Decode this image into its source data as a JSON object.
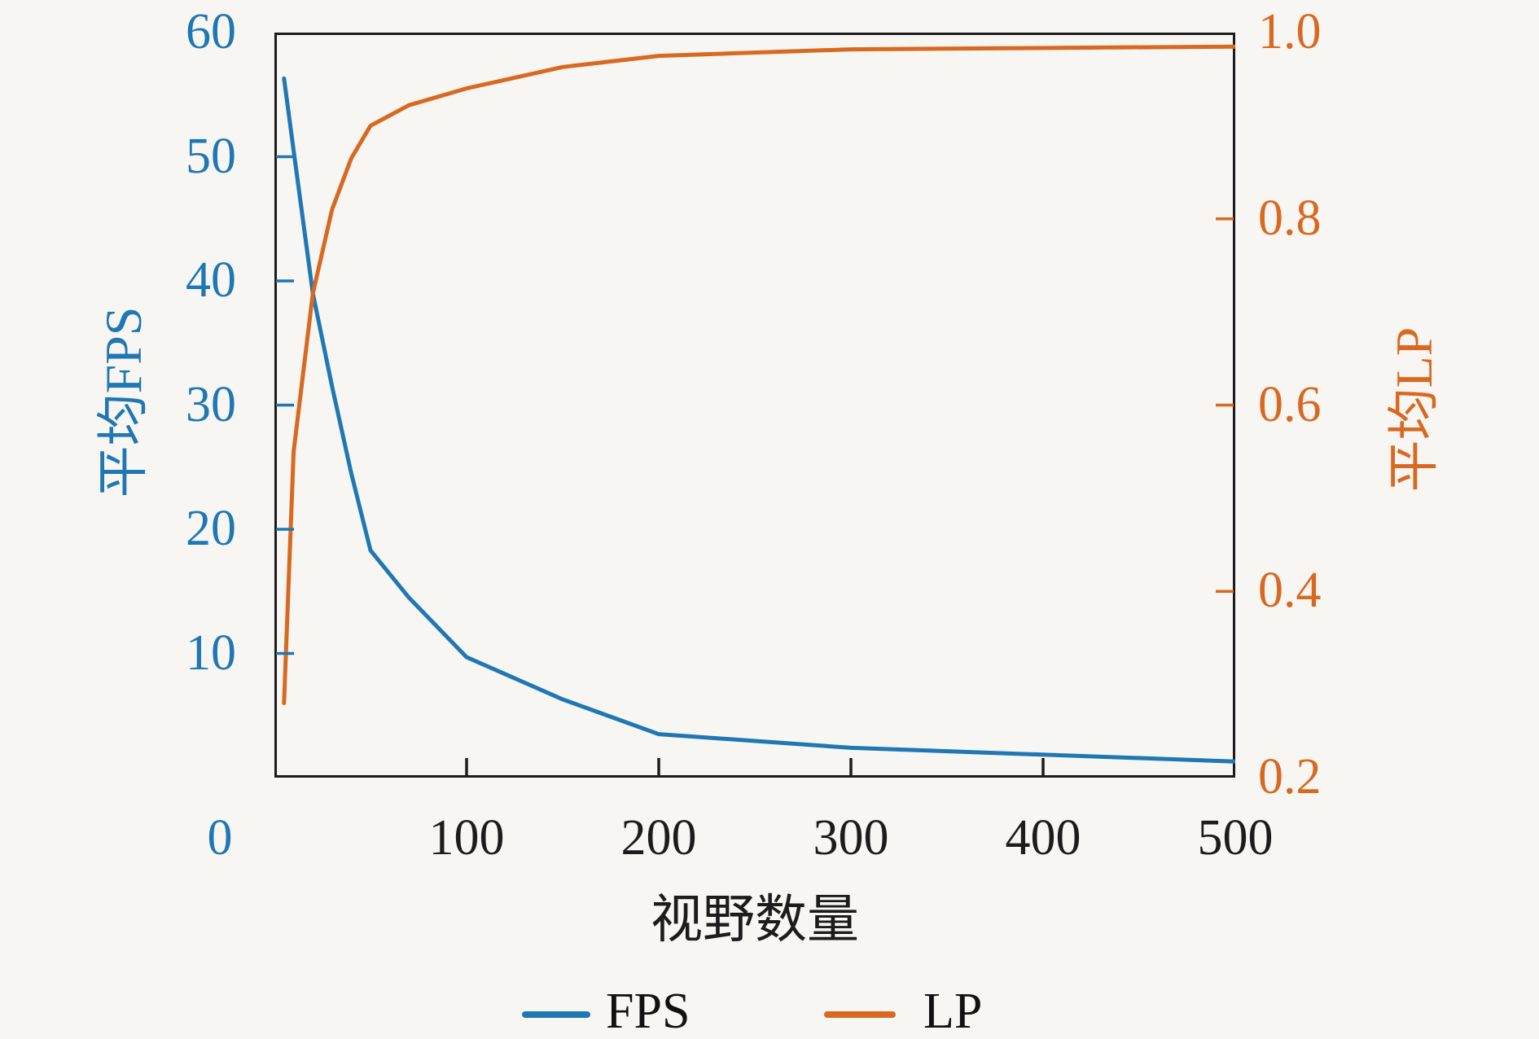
{
  "figure": {
    "background": "#f7f6f2",
    "frame_color": "#1c1c1c"
  },
  "chart_data": {
    "type": "line",
    "title": "",
    "xlabel": "视野数量",
    "ylabel_left": "平均FPS",
    "ylabel_right": "平均LP",
    "grid": false,
    "legend_position": "bottom-center",
    "x_range": [
      0,
      500
    ],
    "left_range": [
      0,
      60
    ],
    "right_range": [
      0.2,
      1.0
    ],
    "x": [
      5,
      10,
      20,
      30,
      40,
      50,
      70,
      100,
      150,
      200,
      300,
      500
    ],
    "series": [
      {
        "name": "FPS",
        "axis": "left",
        "color": "#1f77b4",
        "values": [
          56.3,
          50.5,
          39.0,
          31.5,
          24.5,
          18.3,
          14.5,
          9.7,
          6.3,
          3.5,
          2.4,
          1.3
        ]
      },
      {
        "name": "LP",
        "axis": "right",
        "color": "#d96820",
        "values": [
          0.28,
          0.55,
          0.72,
          0.81,
          0.865,
          0.9,
          0.922,
          0.94,
          0.963,
          0.975,
          0.982,
          0.985
        ]
      }
    ],
    "x_ticks": [
      {
        "v": 100,
        "label": "100"
      },
      {
        "v": 200,
        "label": "200"
      },
      {
        "v": 300,
        "label": "300"
      },
      {
        "v": 400,
        "label": "400"
      },
      {
        "v": 500,
        "label": "500"
      }
    ],
    "corner_zero": {
      "text": "0",
      "color": "#1f77b4"
    },
    "left_ticks": [
      {
        "v": 10,
        "label": "10"
      },
      {
        "v": 20,
        "label": "20"
      },
      {
        "v": 30,
        "label": "30"
      },
      {
        "v": 40,
        "label": "40"
      },
      {
        "v": 50,
        "label": "50"
      },
      {
        "v": 60,
        "label": "60"
      }
    ],
    "right_ticks": [
      {
        "v": 0.2,
        "label": "0.2"
      },
      {
        "v": 0.4,
        "label": "0.4"
      },
      {
        "v": 0.6,
        "label": "0.6"
      },
      {
        "v": 0.8,
        "label": "0.8"
      },
      {
        "v": 1.0,
        "label": "1.0"
      }
    ],
    "legend": [
      {
        "label": "FPS",
        "color": "#1f77b4"
      },
      {
        "label": "LP",
        "color": "#d96820"
      }
    ]
  }
}
